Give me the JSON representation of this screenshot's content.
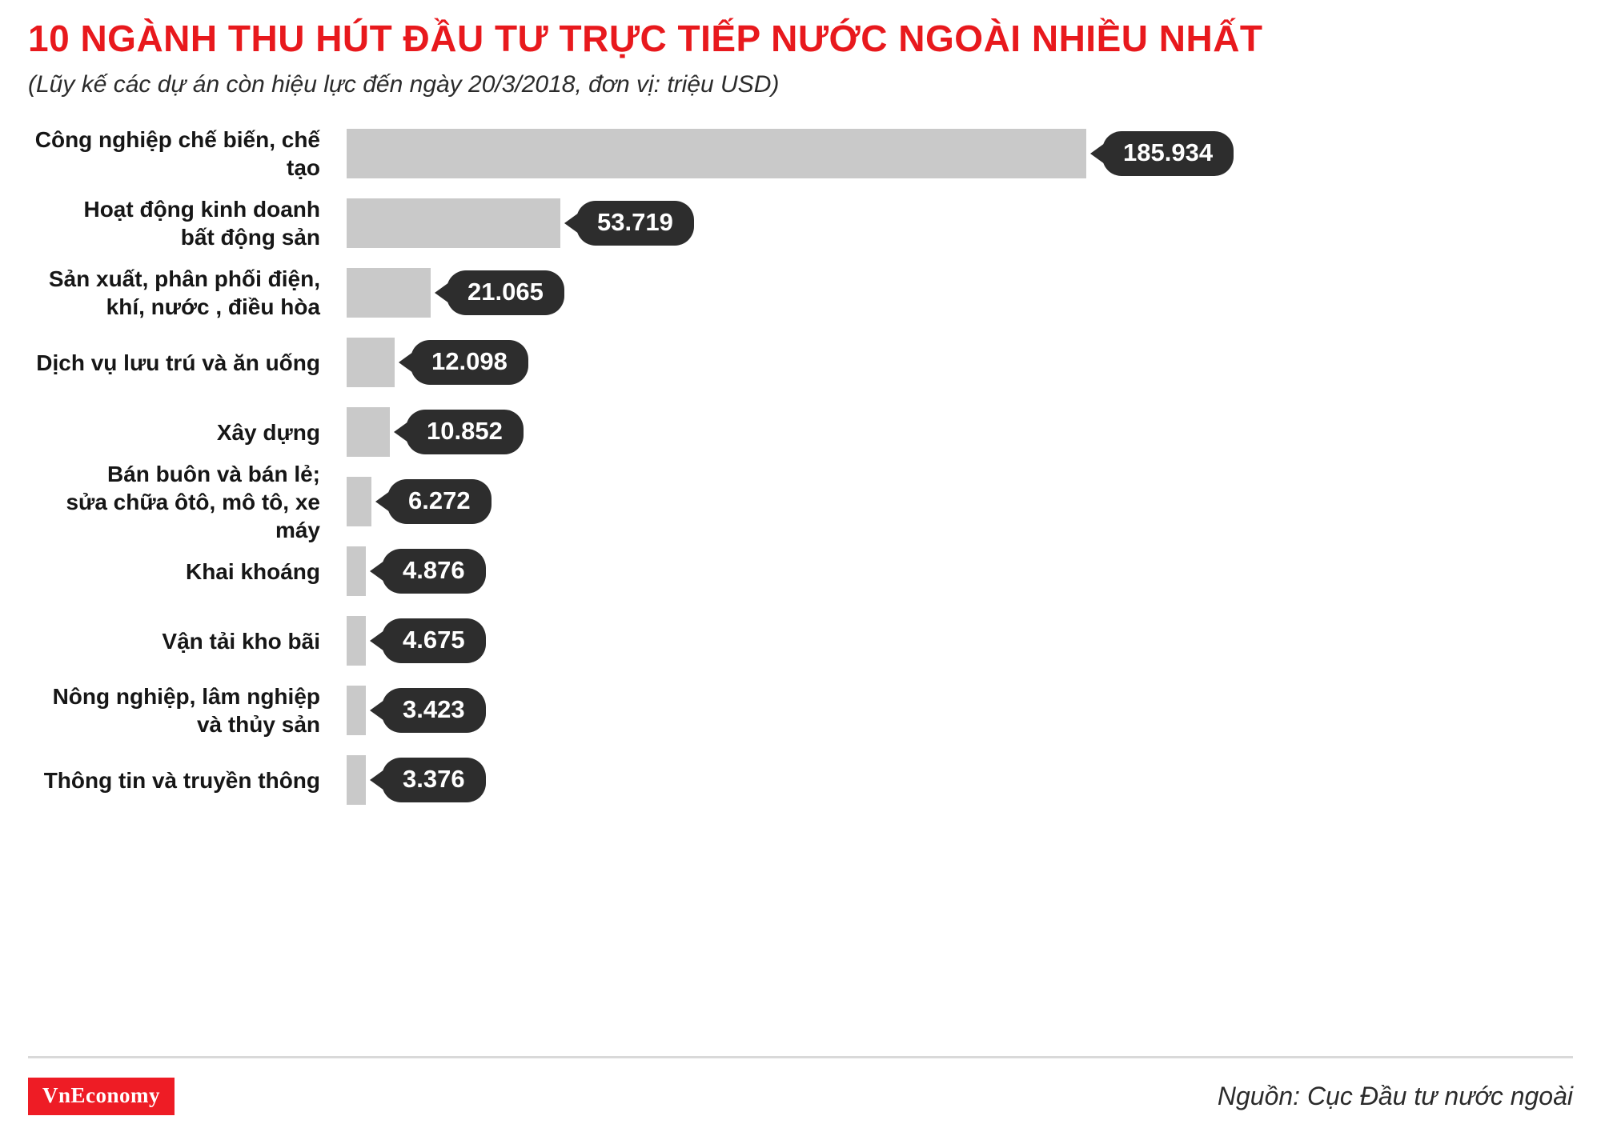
{
  "header": {
    "title": "10 NGÀNH THU HÚT ĐẦU TƯ TRỰC TIẾP NƯỚC NGOÀI NHIỀU NHẤT",
    "subtitle": "(Lũy kế các dự án còn hiệu lực đến ngày 20/3/2018, đơn vị: triệu USD)"
  },
  "footer": {
    "logo_text": "VnEconomy",
    "source": "Nguồn: Cục Đầu tư nước ngoài"
  },
  "colors": {
    "title": "#e8191d",
    "bar": "#c9c9c9",
    "badge": "#2d2d2d",
    "logo_bg": "#ee1c25"
  },
  "chart_data": {
    "type": "bar",
    "orientation": "horizontal",
    "title": "10 ngành thu hút đầu tư trực tiếp nước ngoài nhiều nhất",
    "unit": "triệu USD",
    "as_of": "20/3/2018",
    "categories": [
      "Công nghiệp chế biến, chế tạo",
      "Hoạt động kinh doanh\nbất động sản",
      "Sản xuất, phân phối điện,\nkhí, nước , điều hòa",
      "Dịch vụ lưu trú và ăn uống",
      "Xây dựng",
      "Bán buôn và bán lẻ;\nsửa chữa ôtô, mô tô, xe máy",
      "Khai khoáng",
      "Vận tải kho bãi",
      "Nông nghiệp, lâm nghiệp\nvà thủy sản",
      "Thông tin và truyền thông"
    ],
    "values": [
      185934,
      53719,
      21065,
      12098,
      10852,
      6272,
      4876,
      4675,
      3423,
      3376
    ],
    "value_labels": [
      "185.934",
      "53.719",
      "21.065",
      "12.098",
      "10.852",
      "6.272",
      "4.876",
      "4.675",
      "3.423",
      "3.376"
    ],
    "xlim": [
      0,
      185934
    ],
    "legend": false,
    "grid": false
  }
}
